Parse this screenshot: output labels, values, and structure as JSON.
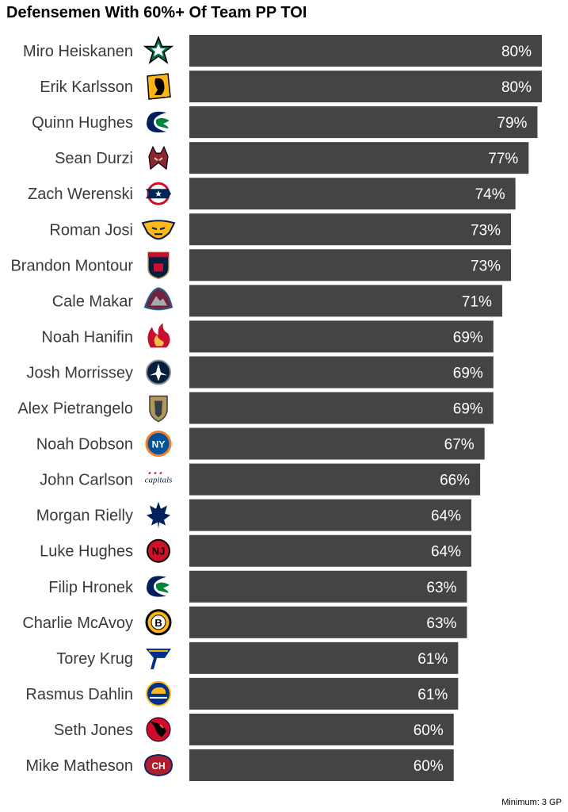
{
  "chart_data": {
    "type": "bar",
    "orientation": "horizontal",
    "title": "Defensemen With 60%+ Of Team PP TOI",
    "footnote": "Minimum: 3 GP",
    "xlim": [
      0,
      80
    ],
    "grid": false,
    "bar_color": "#444444",
    "categories": [
      "Miro Heiskanen",
      "Erik Karlsson",
      "Quinn Hughes",
      "Sean Durzi",
      "Zach Werenski",
      "Roman Josi",
      "Brandon Montour",
      "Cale Makar",
      "Noah Hanifin",
      "Josh Morrissey",
      "Alex Pietrangelo",
      "Noah Dobson",
      "John Carlson",
      "Morgan Rielly",
      "Luke Hughes",
      "Filip Hronek",
      "Charlie McAvoy",
      "Torey Krug",
      "Rasmus Dahlin",
      "Seth Jones",
      "Mike Matheson"
    ],
    "values": [
      80,
      80,
      79,
      77,
      74,
      73,
      73,
      71,
      69,
      69,
      69,
      67,
      66,
      64,
      64,
      63,
      63,
      61,
      61,
      60,
      60
    ],
    "labels": [
      "80%",
      "80%",
      "79%",
      "77%",
      "74%",
      "73%",
      "73%",
      "71%",
      "69%",
      "69%",
      "69%",
      "67%",
      "66%",
      "64%",
      "64%",
      "63%",
      "63%",
      "61%",
      "61%",
      "60%",
      "60%"
    ],
    "team_logos": [
      "dallas-stars-logo-icon",
      "pittsburgh-penguins-logo-icon",
      "vancouver-canucks-logo-icon",
      "arizona-coyotes-logo-icon",
      "columbus-blue-jackets-logo-icon",
      "nashville-predators-logo-icon",
      "florida-panthers-logo-icon",
      "colorado-avalanche-logo-icon",
      "calgary-flames-logo-icon",
      "winnipeg-jets-logo-icon",
      "vegas-golden-knights-logo-icon",
      "new-york-islanders-logo-icon",
      "washington-capitals-logo-icon",
      "toronto-maple-leafs-logo-icon",
      "new-jersey-devils-logo-icon",
      "vancouver-canucks-logo-icon",
      "boston-bruins-logo-icon",
      "st-louis-blues-logo-icon",
      "buffalo-sabres-logo-icon",
      "chicago-blackhawks-logo-icon",
      "montreal-canadiens-logo-icon"
    ]
  }
}
